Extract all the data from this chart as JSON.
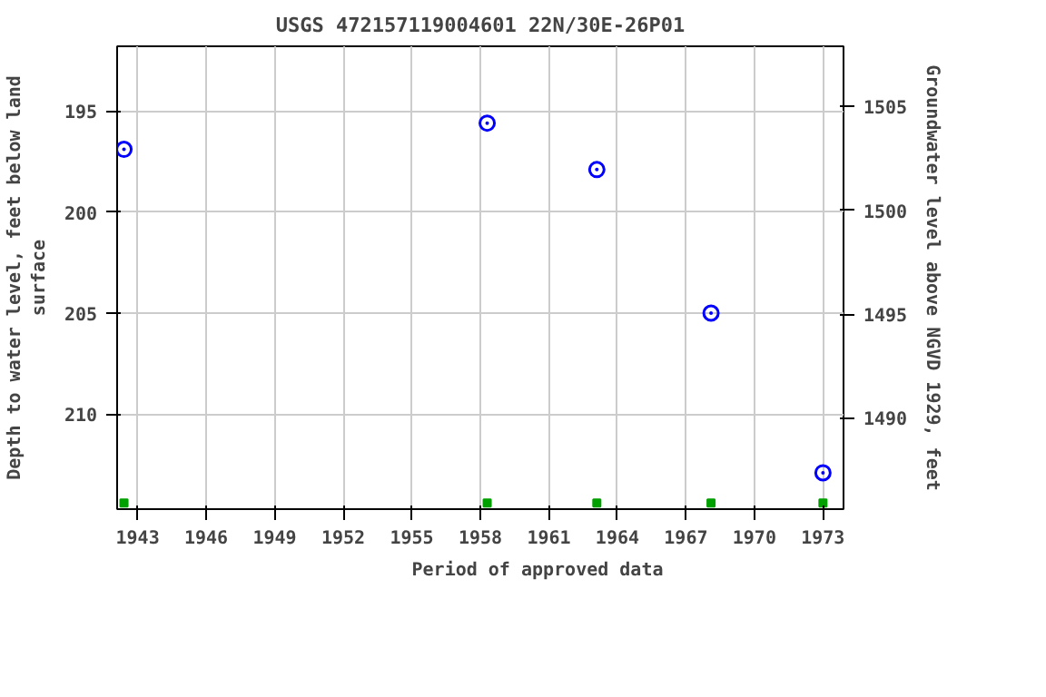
{
  "chart_data": {
    "type": "scatter",
    "title": "USGS 472157119004601 22N/30E-26P01",
    "xlabel": null,
    "ylabel": "Depth to water level, feet below land\nsurface",
    "y2label": "Groundwater level above NGVD 1929, feet",
    "xlim": [
      1942.1,
      1973.9
    ],
    "xticks": [
      1943,
      1946,
      1949,
      1952,
      1955,
      1958,
      1961,
      1964,
      1967,
      1970,
      1973
    ],
    "ylim": [
      214.7,
      191.8
    ],
    "yticks": [
      195,
      200,
      205,
      210
    ],
    "y2lim": [
      1485.6,
      1507.9
    ],
    "y2ticks": [
      1490,
      1495,
      1500,
      1505
    ],
    "grid": true,
    "legend": "bottom",
    "series": [
      {
        "marker": "circle",
        "color": "#0000ff",
        "x": [
          1942.4,
          1958.3,
          1963.1,
          1968.1,
          1973.0
        ],
        "values": [
          196.9,
          195.6,
          197.9,
          205.0,
          212.9
        ]
      },
      {
        "marker": "square",
        "name": "Period of approved data",
        "color": "#00a000",
        "x": [
          1942.4,
          1958.3,
          1963.1,
          1968.1,
          1973.0
        ],
        "values": [
          214.4,
          214.4,
          214.4,
          214.4,
          214.4
        ]
      }
    ]
  }
}
